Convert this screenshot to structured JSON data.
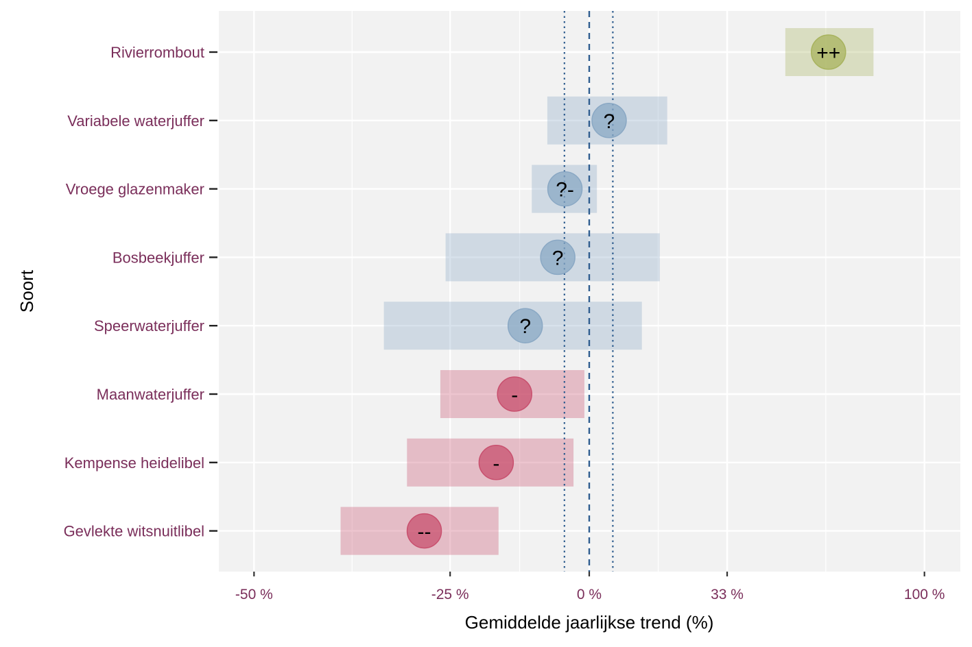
{
  "chart_data": {
    "type": "interval",
    "xlabel": "Gemiddelde jaarlijkse trend (%)",
    "ylabel": "Soort",
    "x_scale": "log-ratio",
    "xlim": [
      -53,
      133
    ],
    "x_ticks": [
      {
        "value": -50,
        "label": "-50 %"
      },
      {
        "value": -25,
        "label": "-25 %"
      },
      {
        "value": 0,
        "label": "0 %"
      },
      {
        "value": 33,
        "label": "33 %"
      },
      {
        "value": 100,
        "label": "100 %"
      }
    ],
    "reference_lines": [
      {
        "value": 0,
        "style": "dashed"
      },
      {
        "value": -5,
        "style": "dotted"
      },
      {
        "value": 5,
        "style": "dotted"
      }
    ],
    "grid": true,
    "legend": "none",
    "colors": {
      "increase": "#a8b35e",
      "uncertain": "#8aa8c4",
      "decrease": "#c8506e",
      "label_text": "#7a2e5a",
      "panel_bg": "#f2f2f2",
      "ref_line": "#2f5d8f"
    },
    "species": [
      {
        "name": "Rivierrombout",
        "estimate": 64,
        "lower": 50,
        "upper": 80,
        "symbol": "++",
        "class": "increase"
      },
      {
        "name": "Variabele waterjuffer",
        "estimate": 4.2,
        "lower": -8.3,
        "upper": 17.5,
        "symbol": "?",
        "class": "uncertain"
      },
      {
        "name": "Vroege glazenmaker",
        "estimate": -4.9,
        "lower": -11.2,
        "upper": 1.6,
        "symbol": "?-",
        "class": "uncertain"
      },
      {
        "name": "Bosbeekjuffer",
        "estimate": -6.3,
        "lower": -25.7,
        "upper": 15.7,
        "symbol": "?",
        "class": "uncertain"
      },
      {
        "name": "Speerwaterjuffer",
        "estimate": -12.4,
        "lower": -34.6,
        "upper": 11.5,
        "symbol": "?",
        "class": "uncertain"
      },
      {
        "name": "Maanwaterjuffer",
        "estimate": -14.3,
        "lower": -26.5,
        "upper": -1,
        "symbol": "-",
        "class": "decrease"
      },
      {
        "name": "Kempense heidelibel",
        "estimate": -17.5,
        "lower": -31.4,
        "upper": -3.2,
        "symbol": "-",
        "class": "decrease"
      },
      {
        "name": "Gevlekte witsnuitlibel",
        "estimate": -28.9,
        "lower": -40.2,
        "upper": -17.1,
        "symbol": "--",
        "class": "decrease"
      }
    ]
  }
}
